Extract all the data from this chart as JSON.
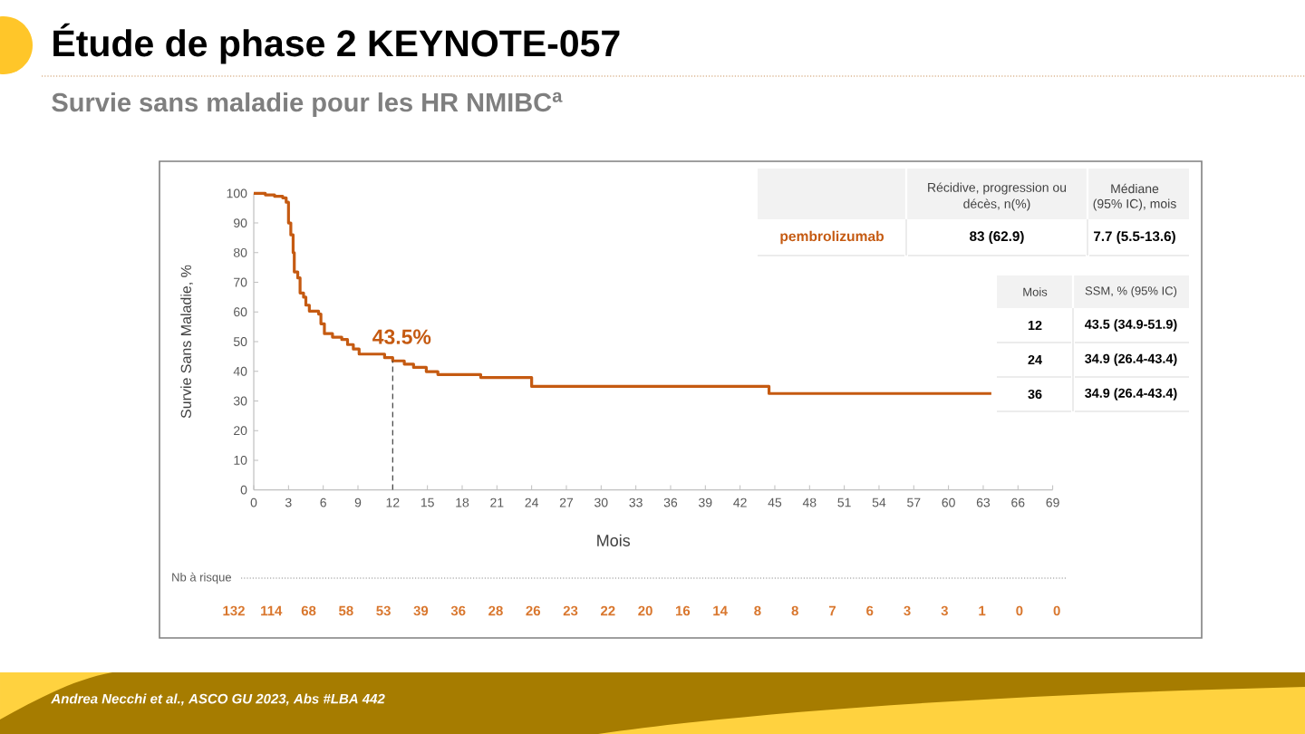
{
  "chart_data": [
    {
      "type": "step",
      "title": "Étude de phase 2 KEYNOTE-057",
      "subtitle": "Survie sans maladie pour les HR NMIBC$^{a}$",
      "xlabel": "Mois",
      "ylabel": "Survie Sans Maladie, %",
      "series": [
        {
          "name": "pembrolizumab",
          "color": "#c55a11",
          "x": [
            0,
            1.0,
            1.8,
            2.5,
            2.8,
            3.0,
            3.2,
            3.4,
            3.5,
            3.8,
            4.0,
            4.3,
            4.5,
            4.8,
            5.6,
            5.8,
            6.1,
            6.8,
            7.6,
            8.1,
            8.6,
            9.1,
            11.3,
            12.0,
            13.0,
            13.8,
            14.9,
            15.9,
            19.6,
            24.0,
            44.5,
            63.7
          ],
          "values": [
            100,
            99.5,
            99,
            98.5,
            97,
            90,
            86,
            80,
            73.5,
            71.5,
            66.4,
            65,
            62.3,
            60.3,
            59.3,
            56,
            52.7,
            51.5,
            50.7,
            49,
            47.5,
            45.8,
            44.6,
            43.5,
            42.4,
            41.3,
            39.9,
            38.9,
            37.9,
            34.9,
            32.5,
            32.5
          ]
        }
      ],
      "xlim": [
        0,
        69
      ],
      "ylim": [
        0,
        100
      ],
      "xticks": [
        0,
        3,
        6,
        9,
        12,
        15,
        18,
        21,
        24,
        27,
        30,
        33,
        36,
        39,
        42,
        45,
        48,
        51,
        54,
        57,
        60,
        63,
        66,
        69
      ],
      "yticks": [
        0,
        10,
        20,
        30,
        40,
        50,
        60,
        70,
        80,
        90,
        100
      ],
      "annotations": [
        {
          "text": "43.5%",
          "x": 12,
          "y": 43.5
        },
        "Andrea Necchi et al., ASCO GU 2023, Abs #LBA 442",
        "Récidive, progression ou",
        "décès, n(%)",
        "Médiane",
        "(95% IC), mois",
        "83 (62.9)",
        "7.7 (5.5-13.6)",
        "Mois",
        "SSM, % (95% IC)",
        "12",
        "43.5 (34.9-51.9)",
        "24",
        "34.9 (26.4-43.4)",
        "36",
        "34.9 (26.4-43.4)"
      ]
    },
    {
      "type": "other",
      "ylabel": "Nb à risque",
      "categories": [
        null,
        null,
        null,
        null,
        null,
        null,
        null,
        null,
        null,
        null,
        null,
        null,
        null,
        null,
        null,
        null,
        null,
        null,
        null,
        null,
        null,
        null,
        null
      ],
      "values": [
        132,
        114,
        68,
        58,
        53,
        39,
        36,
        28,
        26,
        23,
        22,
        20,
        16,
        14,
        8,
        8,
        7,
        6,
        3,
        3,
        1,
        0,
        0
      ],
      "color": "#d9772e",
      "data_labels": true
    }
  ]
}
